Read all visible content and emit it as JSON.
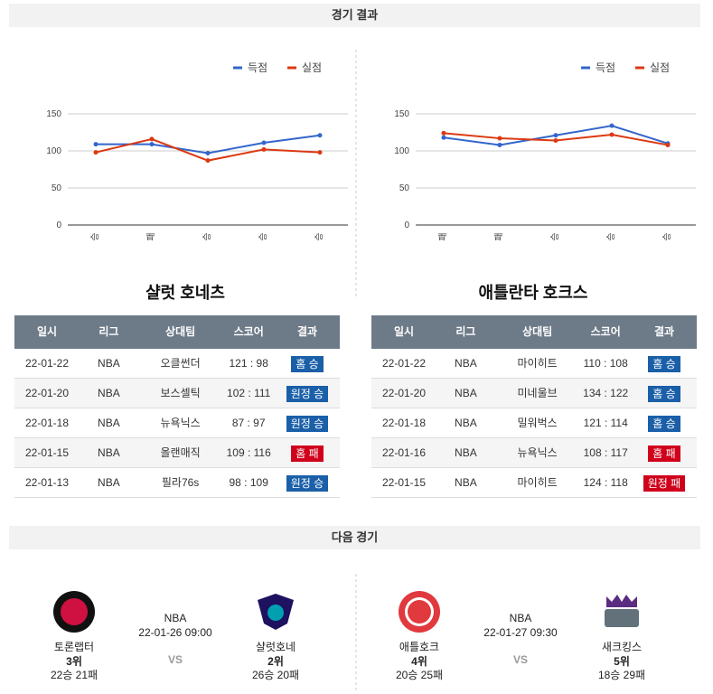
{
  "header": {
    "results_title": "경기 결과",
    "next_title": "다음 경기"
  },
  "badge_colors": {
    "승": "#1a5fa8",
    "패": "#d0021b"
  },
  "panels": [
    {
      "chart_data": {
        "type": "line",
        "categories": [
          "승",
          "패",
          "승",
          "승",
          "승"
        ],
        "series": [
          {
            "name": "득점",
            "color": "#3366cc",
            "values": [
              109,
              109,
              97,
              111,
              121
            ]
          },
          {
            "name": "실점",
            "color": "#dc3912",
            "values": [
              98,
              116,
              87,
              102,
              98
            ]
          }
        ],
        "ylim": [
          0,
          150
        ],
        "yticks": [
          0,
          50,
          100,
          150
        ],
        "grid": true,
        "legend": "top-right"
      },
      "team": "샬럿 호네츠",
      "table": {
        "columns": [
          "일시",
          "리그",
          "상대팀",
          "스코어",
          "결과"
        ],
        "rows": [
          [
            "22-01-22",
            "NBA",
            "오클썬더",
            "121 : 98",
            "홈 승"
          ],
          [
            "22-01-20",
            "NBA",
            "보스셀틱",
            "102 : 111",
            "원정 승"
          ],
          [
            "22-01-18",
            "NBA",
            "뉴욕닉스",
            "87 : 97",
            "원정 승"
          ],
          [
            "22-01-15",
            "NBA",
            "올랜매직",
            "109 : 116",
            "홈 패"
          ],
          [
            "22-01-13",
            "NBA",
            "필라76s",
            "98 : 109",
            "원정 승"
          ]
        ]
      }
    },
    {
      "chart_data": {
        "type": "line",
        "categories": [
          "패",
          "패",
          "승",
          "승",
          "승"
        ],
        "series": [
          {
            "name": "득점",
            "color": "#3366cc",
            "values": [
              118,
              108,
              121,
              134,
              110
            ]
          },
          {
            "name": "실점",
            "color": "#dc3912",
            "values": [
              124,
              117,
              114,
              122,
              108
            ]
          }
        ],
        "ylim": [
          0,
          150
        ],
        "yticks": [
          0,
          50,
          100,
          150
        ],
        "grid": true,
        "legend": "top-right"
      },
      "team": "애틀란타 호크스",
      "table": {
        "columns": [
          "일시",
          "리그",
          "상대팀",
          "스코어",
          "결과"
        ],
        "rows": [
          [
            "22-01-22",
            "NBA",
            "마이히트",
            "110 : 108",
            "홈 승"
          ],
          [
            "22-01-20",
            "NBA",
            "미네울브",
            "134 : 122",
            "홈 승"
          ],
          [
            "22-01-18",
            "NBA",
            "밀워벅스",
            "121 : 114",
            "홈 승"
          ],
          [
            "22-01-16",
            "NBA",
            "뉴욕닉스",
            "108 : 117",
            "홈 패"
          ],
          [
            "22-01-15",
            "NBA",
            "마이히트",
            "124 : 118",
            "원정 패"
          ]
        ]
      }
    }
  ],
  "next_games": [
    {
      "home": {
        "name": "토론랩터",
        "rank": "3위",
        "record": "22승 21패"
      },
      "league": "NBA",
      "time": "22-01-26 09:00",
      "vs": "VS",
      "away": {
        "name": "샬럿호네",
        "rank": "2위",
        "record": "26승 20패"
      }
    },
    {
      "home": {
        "name": "애틀호크",
        "rank": "4위",
        "record": "20승 25패"
      },
      "league": "NBA",
      "time": "22-01-27 09:30",
      "vs": "VS",
      "away": {
        "name": "새크킹스",
        "rank": "5위",
        "record": "18승 29패"
      }
    }
  ]
}
